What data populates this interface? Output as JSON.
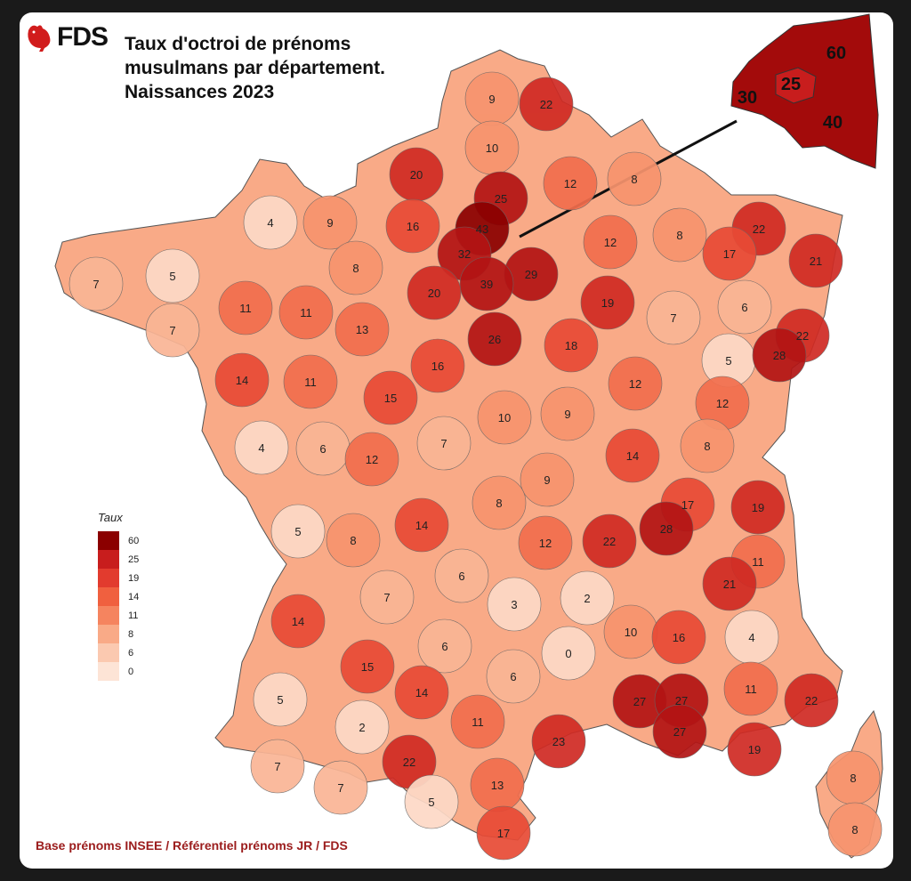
{
  "title_lines": [
    "Taux d'octroi de prénoms",
    "musulmans par département.",
    "Naissances 2023"
  ],
  "logo_text": "FDS",
  "source": "Base prénoms INSEE / Référentiel prénoms JR / FDS",
  "legend": {
    "title": "Taux",
    "items": [
      {
        "label": "60",
        "color": "#8b0000"
      },
      {
        "label": "25",
        "color": "#c81d1d"
      },
      {
        "label": "19",
        "color": "#e23b2e"
      },
      {
        "label": "14",
        "color": "#f0603f"
      },
      {
        "label": "11",
        "color": "#f5845f"
      },
      {
        "label": "8",
        "color": "#f9aa87"
      },
      {
        "label": "6",
        "color": "#fbc9b0"
      },
      {
        "label": "0",
        "color": "#fde4d6"
      }
    ]
  },
  "departments": [
    {
      "value": "9"
    },
    {
      "value": "22"
    },
    {
      "value": "10"
    },
    {
      "value": "20"
    },
    {
      "value": "25"
    },
    {
      "value": "12"
    },
    {
      "value": "8"
    },
    {
      "value": "4"
    },
    {
      "value": "9"
    },
    {
      "value": "16"
    },
    {
      "value": "43"
    },
    {
      "value": "32"
    },
    {
      "value": "29"
    },
    {
      "value": "39"
    },
    {
      "value": "12"
    },
    {
      "value": "22"
    },
    {
      "value": "17"
    },
    {
      "value": "21"
    },
    {
      "value": "8"
    },
    {
      "value": "7"
    },
    {
      "value": "5"
    },
    {
      "value": "8"
    },
    {
      "value": "7"
    },
    {
      "value": "11"
    },
    {
      "value": "11"
    },
    {
      "value": "20"
    },
    {
      "value": "13"
    },
    {
      "value": "26"
    },
    {
      "value": "19"
    },
    {
      "value": "18"
    },
    {
      "value": "7"
    },
    {
      "value": "6"
    },
    {
      "value": "22"
    },
    {
      "value": "5"
    },
    {
      "value": "28"
    },
    {
      "value": "14"
    },
    {
      "value": "11"
    },
    {
      "value": "16"
    },
    {
      "value": "15"
    },
    {
      "value": "12"
    },
    {
      "value": "12"
    },
    {
      "value": "10"
    },
    {
      "value": "9"
    },
    {
      "value": "4"
    },
    {
      "value": "6"
    },
    {
      "value": "12"
    },
    {
      "value": "7"
    },
    {
      "value": "14"
    },
    {
      "value": "8"
    },
    {
      "value": "9"
    },
    {
      "value": "17"
    },
    {
      "value": "19"
    },
    {
      "value": "5"
    },
    {
      "value": "8"
    },
    {
      "value": "14"
    },
    {
      "value": "8"
    },
    {
      "value": "12"
    },
    {
      "value": "22"
    },
    {
      "value": "28"
    },
    {
      "value": "11"
    },
    {
      "value": "6"
    },
    {
      "value": "3"
    },
    {
      "value": "2"
    },
    {
      "value": "21"
    },
    {
      "value": "7"
    },
    {
      "value": "14"
    },
    {
      "value": "6"
    },
    {
      "value": "0"
    },
    {
      "value": "10"
    },
    {
      "value": "16"
    },
    {
      "value": "4"
    },
    {
      "value": "15"
    },
    {
      "value": "6"
    },
    {
      "value": "5"
    },
    {
      "value": "14"
    },
    {
      "value": "27"
    },
    {
      "value": "27"
    },
    {
      "value": "11"
    },
    {
      "value": "22"
    },
    {
      "value": "2"
    },
    {
      "value": "11"
    },
    {
      "value": "23"
    },
    {
      "value": "27"
    },
    {
      "value": "19"
    },
    {
      "value": "7"
    },
    {
      "value": "7"
    },
    {
      "value": "22"
    },
    {
      "value": "13"
    },
    {
      "value": "5"
    },
    {
      "value": "17"
    },
    {
      "value": "8"
    },
    {
      "value": "8"
    }
  ],
  "inset": [
    {
      "value": "60"
    },
    {
      "value": "25"
    },
    {
      "value": "30"
    },
    {
      "value": "40"
    }
  ]
}
